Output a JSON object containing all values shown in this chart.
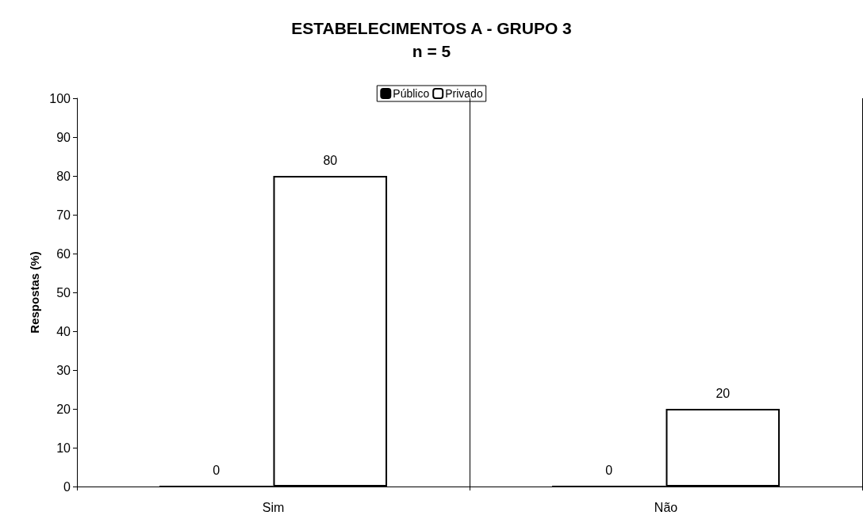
{
  "chart_data": {
    "type": "bar",
    "title": "ESTABELECIMENTOS A - GRUPO 3",
    "subtitle": "n = 5",
    "ylabel": "Respostas (%)",
    "categories": [
      "Sim",
      "Não"
    ],
    "series": [
      {
        "name": "Público",
        "color": "#000000",
        "values": [
          0,
          0
        ]
      },
      {
        "name": "Privado",
        "color": "#ffffff",
        "values": [
          80,
          20
        ]
      }
    ],
    "ylim": [
      0,
      100
    ],
    "yticks": [
      0,
      10,
      20,
      30,
      40,
      50,
      60,
      70,
      80,
      90,
      100
    ],
    "data_labels": true,
    "grid": "x",
    "legend": "top"
  }
}
